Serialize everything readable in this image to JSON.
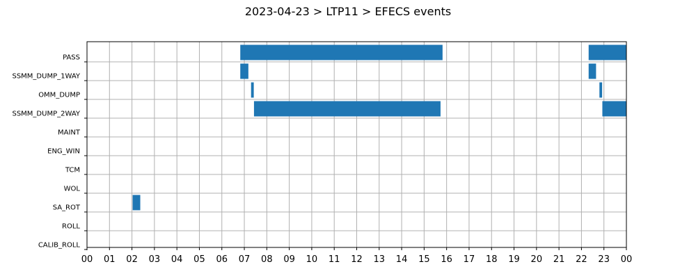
{
  "chart_data": {
    "type": "gantt",
    "title": "2023-04-23 > LTP11 > EFECS events",
    "x_axis": {
      "unit": "hour",
      "range": [
        0,
        24
      ],
      "tick_labels": [
        "00",
        "01",
        "02",
        "03",
        "04",
        "05",
        "06",
        "07",
        "08",
        "09",
        "10",
        "11",
        "12",
        "13",
        "14",
        "15",
        "16",
        "17",
        "18",
        "19",
        "20",
        "21",
        "22",
        "23",
        "00"
      ]
    },
    "categories": [
      "PASS",
      "SSMM_DUMP_1WAY",
      "OMM_DUMP",
      "SSMM_DUMP_2WAY",
      "MAINT",
      "ENG_WIN",
      "TCM",
      "WOL",
      "SA_ROT",
      "ROLL",
      "CALIB_ROLL"
    ],
    "events": [
      {
        "category": "PASS",
        "start": 6.82,
        "end": 15.82
      },
      {
        "category": "PASS",
        "start": 22.32,
        "end": 24.0
      },
      {
        "category": "SSMM_DUMP_1WAY",
        "start": 6.82,
        "end": 7.18
      },
      {
        "category": "SSMM_DUMP_1WAY",
        "start": 22.32,
        "end": 22.65
      },
      {
        "category": "OMM_DUMP",
        "start": 7.3,
        "end": 7.42
      },
      {
        "category": "OMM_DUMP",
        "start": 22.8,
        "end": 22.92
      },
      {
        "category": "SSMM_DUMP_2WAY",
        "start": 7.43,
        "end": 15.73
      },
      {
        "category": "SSMM_DUMP_2WAY",
        "start": 22.93,
        "end": 24.0
      },
      {
        "category": "SA_ROT",
        "start": 2.03,
        "end": 2.37
      }
    ],
    "grid": true,
    "bar_color": "#1f77b4"
  }
}
